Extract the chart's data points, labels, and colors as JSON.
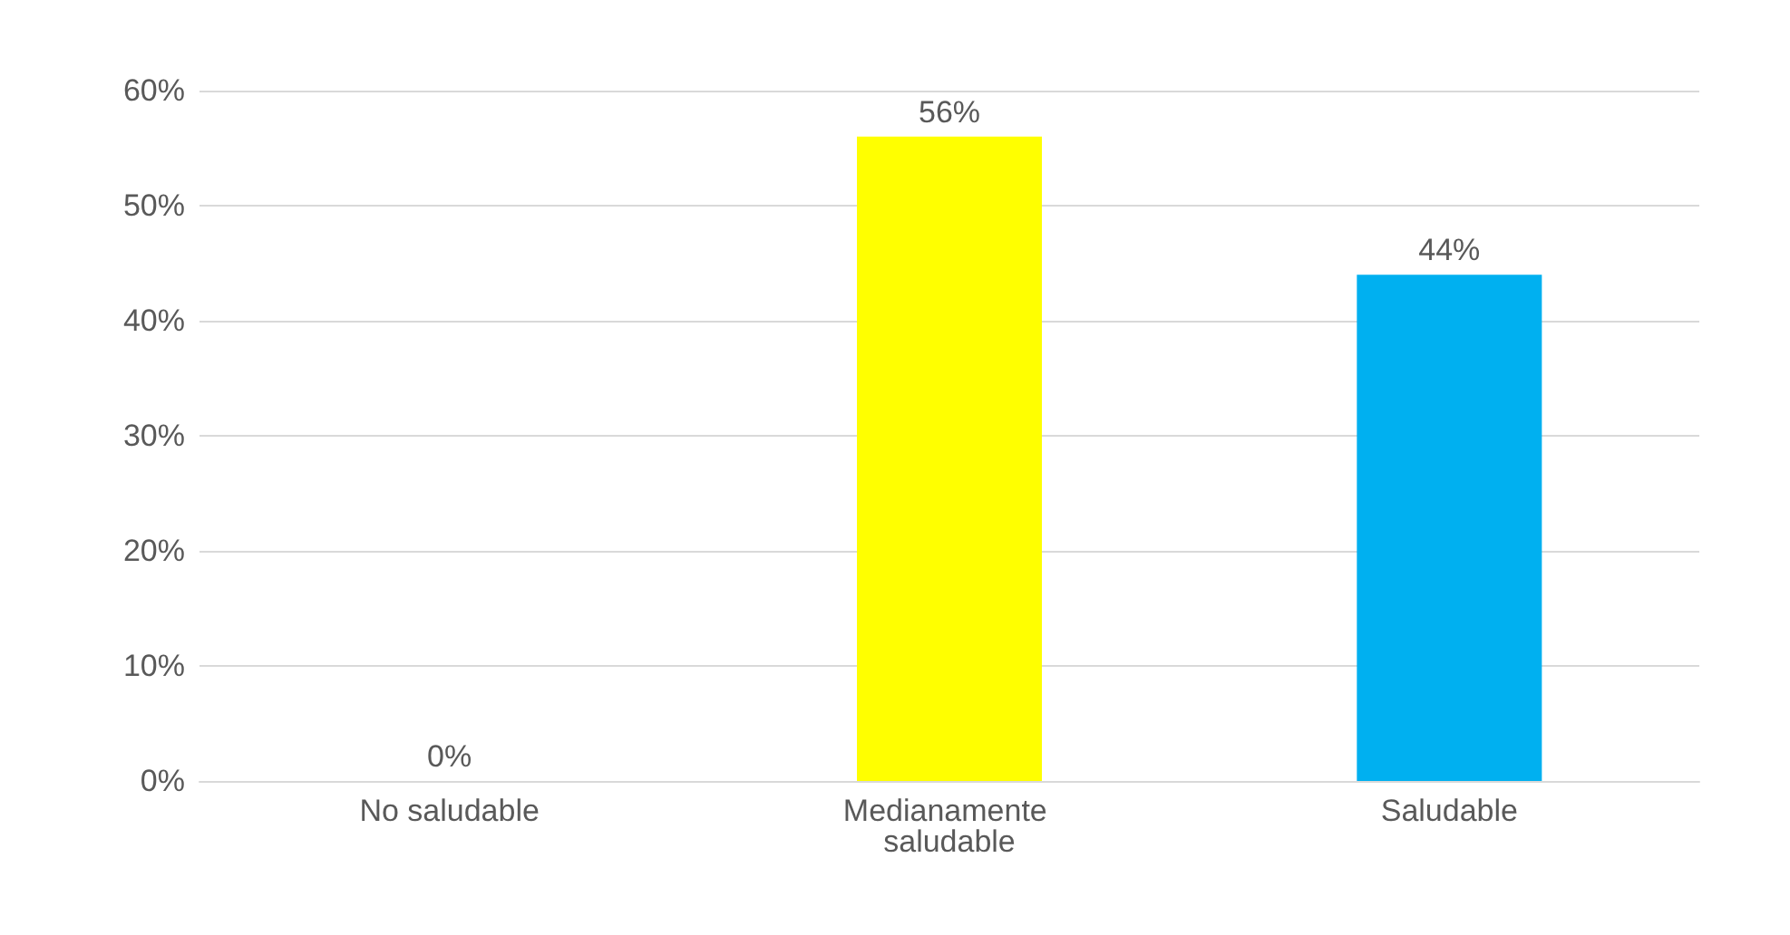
{
  "chart_data": {
    "type": "bar",
    "categories": [
      "No saludable",
      "Medianamente saludable",
      "Saludable"
    ],
    "values": [
      0,
      56,
      44
    ],
    "value_labels": [
      "0%",
      "56%",
      "44%"
    ],
    "colors": [
      "#c00000",
      "#ffff00",
      "#00b0f0"
    ],
    "ylim": [
      0,
      60
    ],
    "yticks": [
      {
        "value": 0,
        "label": "0%"
      },
      {
        "value": 10,
        "label": "10%"
      },
      {
        "value": 20,
        "label": "20%"
      },
      {
        "value": 30,
        "label": "30%"
      },
      {
        "value": 40,
        "label": "40%"
      },
      {
        "value": 50,
        "label": "50%"
      },
      {
        "value": 60,
        "label": "60%"
      }
    ],
    "grid": "y"
  }
}
